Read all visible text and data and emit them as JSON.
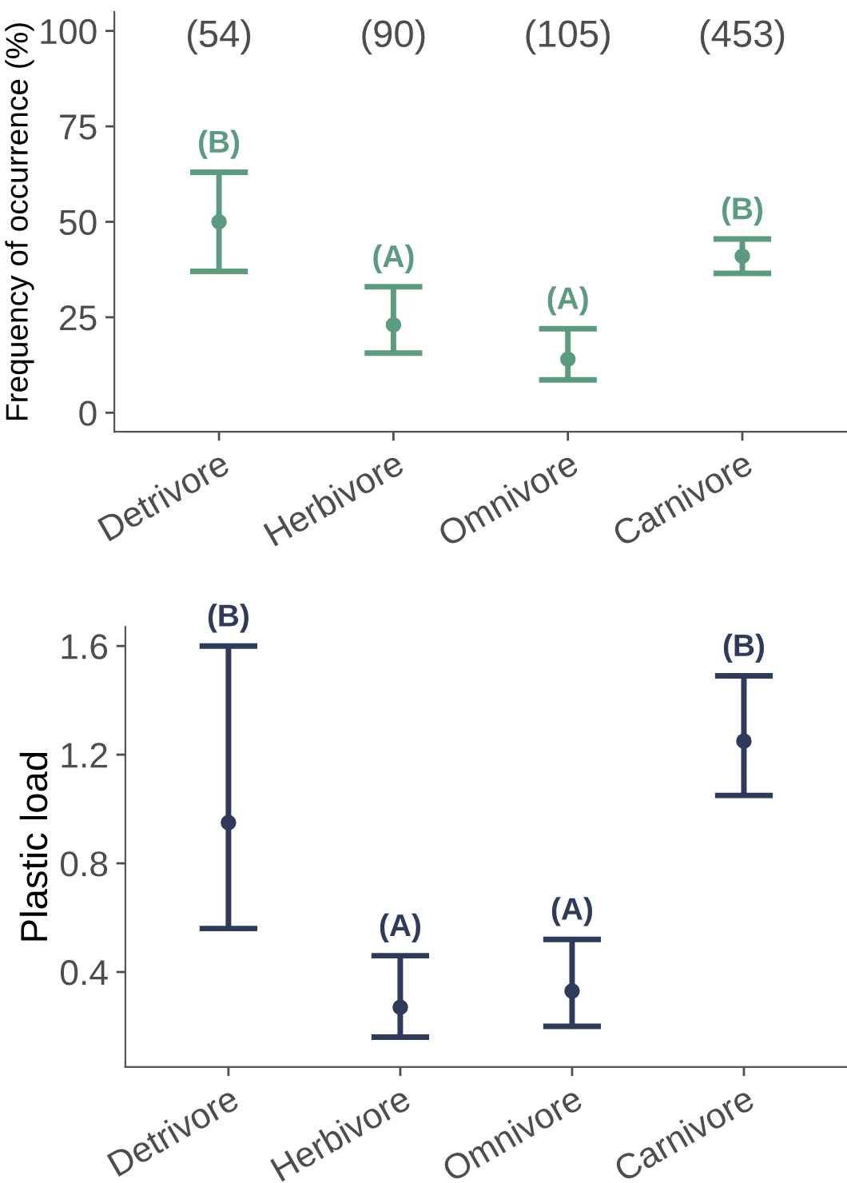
{
  "chart_data": [
    {
      "type": "scatter",
      "ylabel": "Frequency of occurrence (%)",
      "categories": [
        "Detrivore",
        "Herbivore",
        "Omnivore",
        "Carnivore"
      ],
      "series": [
        {
          "color": "#5b9b80",
          "values": [
            50,
            23,
            14,
            41
          ],
          "errors": [
            [
              37,
              63
            ],
            [
              15.6,
              33
            ],
            [
              8.6,
              22
            ],
            [
              36.5,
              45.5
            ]
          ]
        }
      ],
      "ylim": [
        -5,
        105
      ],
      "yticks": [
        0,
        25,
        50,
        75,
        100
      ],
      "grid": false,
      "legend": false,
      "marker": "circle",
      "annotations": [
        "(54)",
        "(90)",
        "(105)",
        "(453)",
        {
          "text": "(B)",
          "x": "Detrivore",
          "y": 63
        },
        {
          "text": "(A)",
          "x": "Herbivore",
          "y": 33
        },
        {
          "text": "(A)",
          "x": "Omnivore",
          "y": 22
        },
        {
          "text": "(B)",
          "x": "Carnivore",
          "y": 45.5
        }
      ]
    },
    {
      "type": "scatter",
      "ylabel": "Plastic load",
      "categories": [
        "Detrivore",
        "Herbivore",
        "Omnivore",
        "Carnivore"
      ],
      "series": [
        {
          "color": "#2f3b5a",
          "values": [
            0.95,
            0.27,
            0.33,
            1.25
          ],
          "errors": [
            [
              0.56,
              1.6
            ],
            [
              0.16,
              0.46
            ],
            [
              0.2,
              0.52
            ],
            [
              1.05,
              1.49
            ]
          ]
        }
      ],
      "ylim": [
        0.05,
        1.67
      ],
      "yticks": [
        0.4,
        0.8,
        1.2,
        1.6
      ],
      "grid": false,
      "legend": false,
      "marker": "circle",
      "annotations": [
        {
          "text": "(B)",
          "x": "Detrivore",
          "y": 1.6
        },
        {
          "text": "(A)",
          "x": "Herbivore",
          "y": 0.46
        },
        {
          "text": "(A)",
          "x": "Omnivore",
          "y": 0.52
        },
        {
          "text": "(B)",
          "x": "Carnivore",
          "y": 1.49
        }
      ]
    }
  ]
}
